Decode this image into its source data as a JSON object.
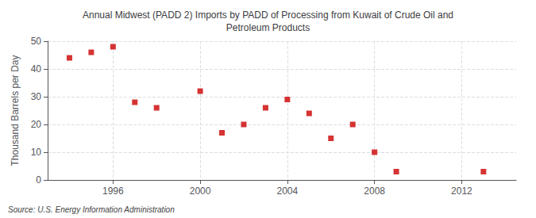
{
  "chart_data": {
    "type": "scatter",
    "title": "Annual Midwest (PADD 2) Imports by PADD of Processing from Kuwait of Crude Oil and\nPetroleum Products",
    "ylabel": "Thousand Barrels per Day",
    "source": "Source: U.S. Energy Information Administration",
    "x": [
      1994,
      1995,
      1996,
      1997,
      1998,
      2000,
      2001,
      2002,
      2003,
      2004,
      2005,
      2006,
      2007,
      2008,
      2009,
      2013
    ],
    "values": [
      44,
      46,
      48,
      28,
      26,
      32,
      17,
      20,
      26,
      29,
      24,
      15,
      20,
      10,
      3,
      3
    ],
    "color": "#cc0000",
    "marker": "square",
    "xlim": [
      1993,
      2014.5
    ],
    "xticks": [
      1996,
      2000,
      2004,
      2008,
      2012
    ],
    "ylim": [
      0,
      50
    ],
    "yticks": [
      0,
      10,
      20,
      30,
      40,
      50
    ],
    "grid": true
  }
}
